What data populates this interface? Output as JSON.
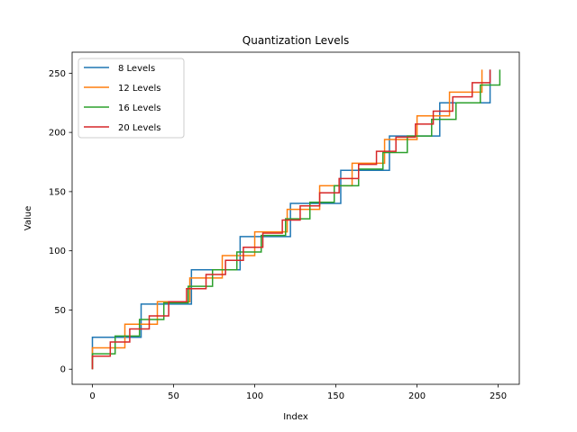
{
  "chart_data": {
    "type": "line",
    "title": "Quantization Levels",
    "xlabel": "Index",
    "ylabel": "Value",
    "xlim": [
      -12.5,
      263
    ],
    "ylim": [
      -12.75,
      267.75
    ],
    "xticks": [
      0,
      50,
      100,
      150,
      200,
      250
    ],
    "yticks": [
      0,
      50,
      100,
      150,
      200,
      250
    ],
    "legend_position": "top-left",
    "series": [
      {
        "name": "8 Levels",
        "color": "#1f77b4",
        "x": [
          0,
          0,
          30,
          30,
          61,
          61,
          91,
          91,
          122,
          122,
          153,
          153,
          183,
          183,
          214,
          214,
          245,
          245
        ],
        "y": [
          0,
          27,
          27,
          55,
          55,
          84,
          84,
          112,
          112,
          140,
          140,
          168,
          168,
          197,
          197,
          225,
          225,
          253
        ]
      },
      {
        "name": "12 Levels",
        "color": "#ff7f0e",
        "x": [
          0,
          0,
          20,
          20,
          40,
          40,
          60,
          60,
          80,
          80,
          100,
          100,
          120,
          120,
          140,
          140,
          160,
          160,
          180,
          180,
          200,
          200,
          220,
          220,
          240,
          240
        ],
        "y": [
          0,
          18,
          18,
          38,
          38,
          57,
          57,
          77,
          77,
          96,
          96,
          116,
          116,
          135,
          135,
          155,
          155,
          174,
          174,
          194,
          194,
          214,
          214,
          234,
          234,
          253
        ]
      },
      {
        "name": "16 Levels",
        "color": "#2ca02c",
        "x": [
          0,
          0,
          14,
          14,
          29,
          29,
          44,
          44,
          59,
          59,
          74,
          74,
          89,
          89,
          104,
          104,
          119,
          119,
          134,
          134,
          149,
          149,
          164,
          164,
          179,
          179,
          194,
          194,
          209,
          209,
          224,
          224,
          239,
          239,
          251,
          251
        ],
        "y": [
          0,
          13,
          13,
          28,
          28,
          42,
          42,
          56,
          56,
          70,
          70,
          84,
          84,
          99,
          99,
          113,
          113,
          127,
          127,
          141,
          141,
          155,
          155,
          169,
          169,
          183,
          183,
          197,
          197,
          211,
          211,
          225,
          225,
          240,
          240,
          253
        ]
      },
      {
        "name": "20 Levels",
        "color": "#d62728",
        "x": [
          0,
          0,
          11,
          11,
          23,
          23,
          35,
          35,
          47,
          47,
          58,
          58,
          70,
          70,
          82,
          82,
          93,
          93,
          105,
          105,
          117,
          117,
          128,
          128,
          140,
          140,
          152,
          152,
          164,
          164,
          175,
          175,
          187,
          187,
          199,
          199,
          210,
          210,
          222,
          222,
          234,
          234,
          245,
          245
        ],
        "y": [
          0,
          11,
          11,
          23,
          23,
          34,
          34,
          45,
          45,
          57,
          57,
          68,
          68,
          80,
          80,
          92,
          92,
          103,
          103,
          115,
          115,
          126,
          126,
          138,
          138,
          149,
          149,
          161,
          161,
          173,
          173,
          184,
          184,
          196,
          196,
          207,
          207,
          218,
          218,
          230,
          230,
          242,
          242,
          253
        ]
      }
    ]
  }
}
